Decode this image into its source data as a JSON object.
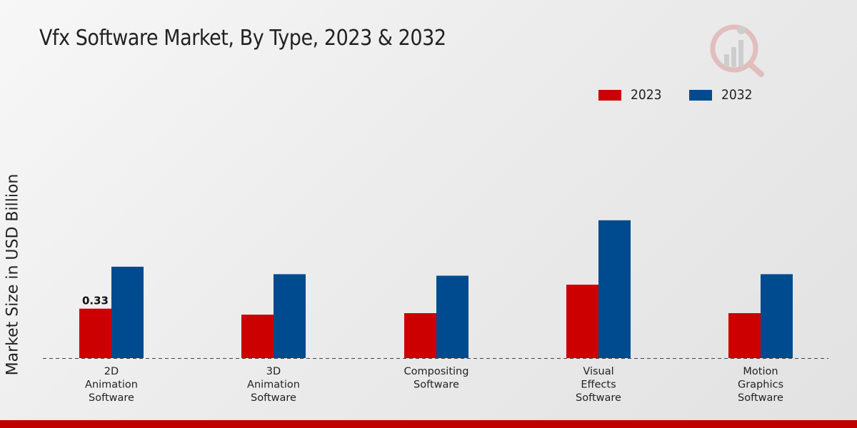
{
  "chart_data": {
    "type": "bar",
    "title": "Vfx Software Market, By Type, 2023 & 2032",
    "xlabel": "",
    "ylabel": "Market Size in USD Billion",
    "ylim": [
      0,
      1.2
    ],
    "categories": [
      [
        "2D",
        "Animation",
        "Software"
      ],
      [
        "3D",
        "Animation",
        "Software"
      ],
      [
        "Compositing",
        "Software"
      ],
      [
        "Visual",
        "Effects",
        "Software"
      ],
      [
        "Motion",
        "Graphics",
        "Software"
      ]
    ],
    "series": [
      {
        "name": "2023",
        "color": "#cc0000",
        "values": [
          0.33,
          0.29,
          0.3,
          0.49,
          0.3
        ]
      },
      {
        "name": "2032",
        "color": "#004a8f",
        "values": [
          0.61,
          0.56,
          0.55,
          0.92,
          0.56
        ]
      }
    ],
    "data_labels": [
      {
        "series": 0,
        "index": 0,
        "text": "0.33"
      }
    ],
    "legend_position": "top-right",
    "grid": false
  },
  "watermark": {
    "icon": "brand-logo-icon"
  }
}
